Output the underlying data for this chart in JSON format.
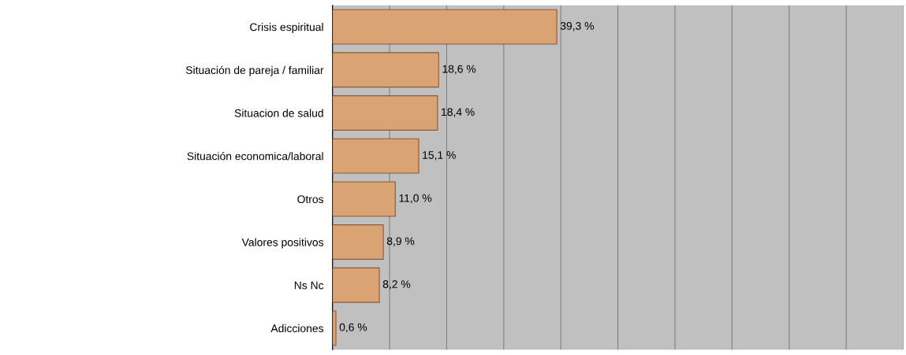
{
  "chart_data": {
    "type": "bar",
    "orientation": "horizontal",
    "categories": [
      "Crisis espiritual",
      "Situación de pareja / familiar",
      "Situacion de salud",
      "Situación economica/laboral",
      "Otros",
      "Valores positivos",
      "Ns Nc",
      "Adicciones"
    ],
    "values": [
      39.3,
      18.6,
      18.4,
      15.1,
      11.0,
      8.9,
      8.2,
      0.6
    ],
    "value_labels": [
      "39,3 %",
      "18,6 %",
      "18,4 %",
      "15,1 %",
      "11,0 %",
      "8,9 %",
      "8,2 %",
      "0,6 %"
    ],
    "color": "#d9a373",
    "xlim": [
      0,
      100
    ],
    "xticks": [
      {
        "value": 0,
        "label": null
      },
      {
        "value": 10,
        "label": null
      },
      {
        "value": 20,
        "label": null
      },
      {
        "value": 30,
        "label": null
      },
      {
        "value": 40,
        "label": null
      },
      {
        "value": 50,
        "label": null
      },
      {
        "value": 60,
        "label": null
      },
      {
        "value": 70,
        "label": null
      },
      {
        "value": 80,
        "label": null
      },
      {
        "value": 90,
        "label": null
      },
      {
        "value": 100,
        "label": null
      }
    ],
    "grid": "x",
    "tick_labels": "y"
  }
}
